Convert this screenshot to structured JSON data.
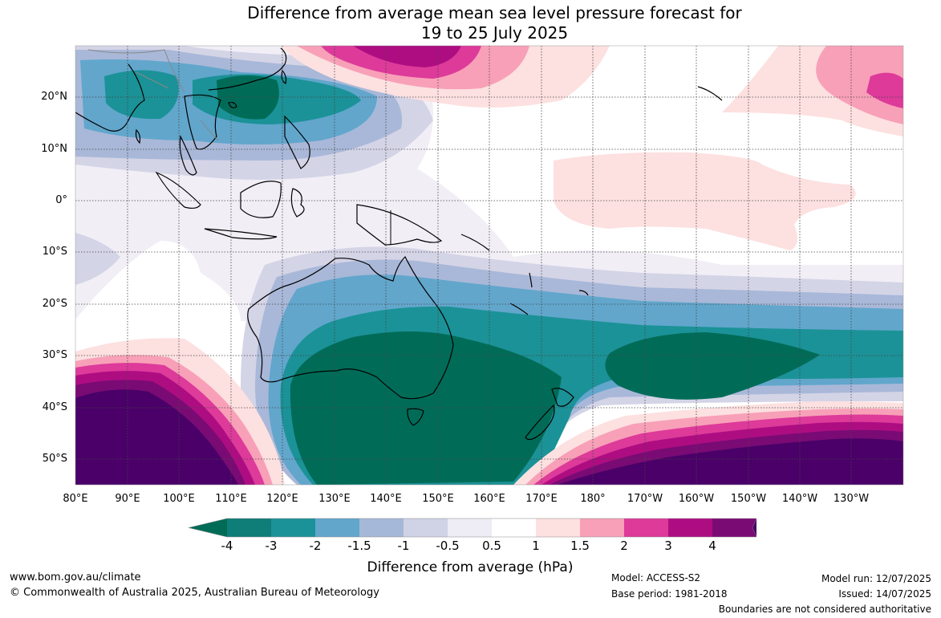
{
  "title": {
    "line1": "Difference from average mean sea level pressure forecast for",
    "line2": "19 to 25 July 2025"
  },
  "map": {
    "lat_labels": [
      "20°N",
      "10°N",
      "0°",
      "10°S",
      "20°S",
      "30°S",
      "40°S",
      "50°S"
    ],
    "lon_labels": [
      "80°E",
      "90°E",
      "100°E",
      "110°E",
      "120°E",
      "130°E",
      "140°E",
      "150°E",
      "160°E",
      "170°E",
      "180°",
      "170°W",
      "160°W",
      "150°W",
      "140°W",
      "130°W"
    ],
    "grid": true
  },
  "colorbar": {
    "ticks": [
      "-4",
      "-3",
      "-2",
      "-1.5",
      "-1",
      "-0.5",
      "0.5",
      "1",
      "1.5",
      "2",
      "3",
      "4"
    ],
    "colors": [
      "#0f7d78",
      "#1b9297",
      "#62a6cc",
      "#a6b8d8",
      "#d0d2e5",
      "#eeecf4",
      "#ffffff",
      "#fde0e0",
      "#f8a0b8",
      "#dd3a9a",
      "#ae0d82",
      "#7a0b74"
    ],
    "extend_low_color": "#006c58",
    "extend_high_color": "#4a0068",
    "label": "Difference from average (hPa)"
  },
  "footer": {
    "url": "www.bom.gov.au/climate",
    "copyright": "© Commonwealth of Australia 2025, Australian Bureau of Meteorology",
    "model": "Model: ACCESS-S2",
    "base_period": "Base period: 1981-2018",
    "model_run": "Model run: 12/07/2025",
    "issued": "Issued: 14/07/2025",
    "disclaimer": "Boundaries are not considered authoritative"
  }
}
